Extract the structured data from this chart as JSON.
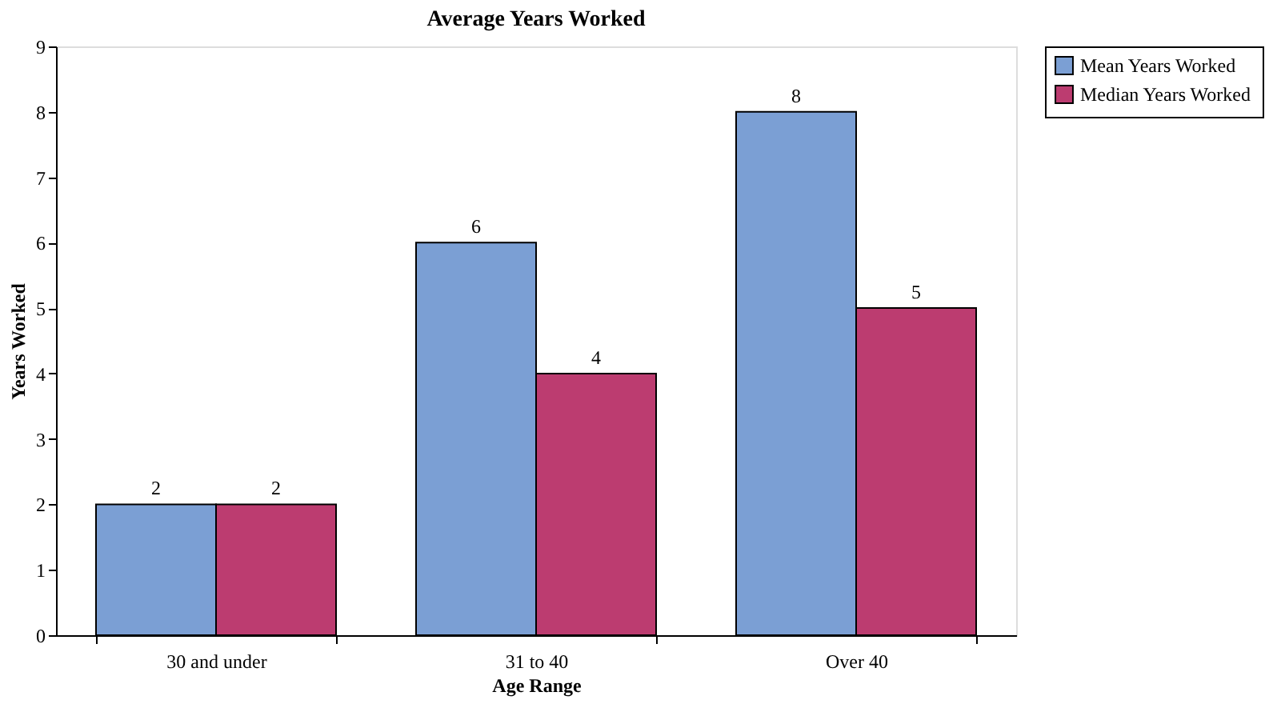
{
  "chart_data": {
    "type": "bar",
    "title": "Average Years Worked",
    "xlabel": "Age Range",
    "ylabel": "Years Worked",
    "categories": [
      "30 and under",
      "31 to 40",
      "Over 40"
    ],
    "series": [
      {
        "name": "Mean Years Worked",
        "color": "#7b9fd4",
        "values": [
          2,
          6,
          8
        ]
      },
      {
        "name": "Median Years Worked",
        "color": "#bc3c70",
        "values": [
          2,
          4,
          5
        ]
      }
    ],
    "ylim": [
      0,
      9
    ],
    "yticks": [
      0,
      1,
      2,
      3,
      4,
      5,
      6,
      7,
      8,
      9
    ],
    "grid": false,
    "legend": "right",
    "data_labels": true
  }
}
